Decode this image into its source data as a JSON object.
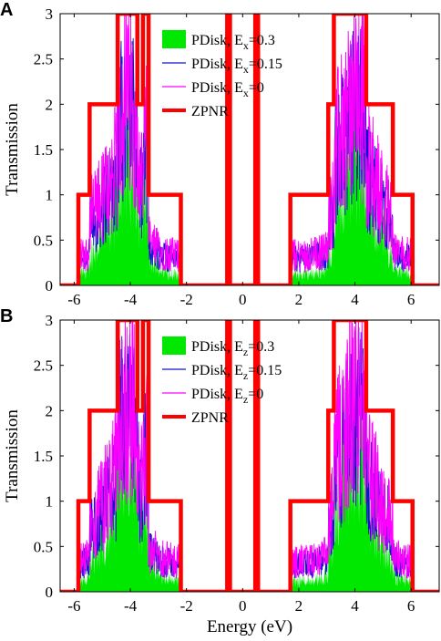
{
  "chart_data": [
    {
      "type": "line",
      "panel_label": "A",
      "xlabel": "",
      "ylabel": "Transmission",
      "xlim": [
        -6.5,
        7.0
      ],
      "ylim": [
        0,
        3
      ],
      "xticks": [
        "-6",
        "-4",
        "-2",
        "0",
        "2",
        "4",
        "6"
      ],
      "yticks": [
        "0",
        "0.5",
        "1",
        "1.5",
        "2",
        "2.5",
        "3"
      ],
      "legend_position": "top-center",
      "series": [
        {
          "name": "PDisk, E",
          "sub": "x",
          "suffix": "=0.3",
          "kind": "area",
          "color": "#00e800"
        },
        {
          "name": "PDisk, E",
          "sub": "x",
          "suffix": "=0.15",
          "kind": "line",
          "color": "#1010d0"
        },
        {
          "name": "PDisk, E",
          "sub": "x",
          "suffix": "=0",
          "kind": "line",
          "color": "#ff00ff"
        },
        {
          "name": "ZPNR",
          "sub": "",
          "suffix": "",
          "kind": "step",
          "color": "#ff0000",
          "steps_x": [
            -6.5,
            -5.85,
            -5.85,
            -5.45,
            -5.45,
            -4.45,
            -4.45,
            -3.75,
            -3.75,
            -3.55,
            -3.55,
            -3.35,
            -3.35,
            -2.2,
            -2.2,
            -0.55,
            -0.55,
            -0.45,
            -0.45,
            0.45,
            0.45,
            0.55,
            0.55,
            1.7,
            1.7,
            3.05,
            3.05,
            3.25,
            3.25,
            3.7,
            3.7,
            4.4,
            4.4,
            5.35,
            5.35,
            6.05,
            6.05,
            6.65,
            6.65,
            7.0
          ],
          "steps_y": [
            0,
            0,
            1,
            1,
            2,
            2,
            3,
            3,
            2,
            2,
            3,
            3,
            1,
            1,
            0,
            0,
            3,
            3,
            0,
            0,
            3,
            3,
            0,
            0,
            1,
            1,
            2,
            2,
            3,
            3,
            3,
            3,
            2,
            2,
            1,
            1,
            0,
            0,
            0,
            0
          ]
        }
      ]
    },
    {
      "type": "line",
      "panel_label": "B",
      "xlabel": "Energy (eV)",
      "ylabel": "Transmission",
      "xlim": [
        -6.5,
        7.0
      ],
      "ylim": [
        0,
        3
      ],
      "xticks": [
        "-6",
        "-4",
        "-2",
        "0",
        "2",
        "4",
        "6"
      ],
      "yticks": [
        "0",
        "0.5",
        "1",
        "1.5",
        "2",
        "2.5",
        "3"
      ],
      "legend_position": "top-center",
      "series": [
        {
          "name": "PDisk, E",
          "sub": "z",
          "suffix": "=0.3",
          "kind": "area",
          "color": "#00e800"
        },
        {
          "name": "PDisk, E",
          "sub": "z",
          "suffix": "=0.15",
          "kind": "line",
          "color": "#1010d0"
        },
        {
          "name": "PDisk, E",
          "sub": "z",
          "suffix": "=0",
          "kind": "line",
          "color": "#ff00ff"
        },
        {
          "name": "ZPNR",
          "sub": "",
          "suffix": "",
          "kind": "step",
          "color": "#ff0000",
          "steps_x": [
            -6.5,
            -5.85,
            -5.85,
            -5.45,
            -5.45,
            -4.45,
            -4.45,
            -3.75,
            -3.75,
            -3.55,
            -3.55,
            -3.35,
            -3.35,
            -2.2,
            -2.2,
            -0.55,
            -0.55,
            -0.45,
            -0.45,
            0.45,
            0.45,
            0.55,
            0.55,
            1.7,
            1.7,
            3.05,
            3.05,
            3.25,
            3.25,
            3.7,
            3.7,
            4.4,
            4.4,
            5.35,
            5.35,
            6.05,
            6.05,
            6.65,
            6.65,
            7.0
          ],
          "steps_y": [
            0,
            0,
            1,
            1,
            2,
            2,
            3,
            3,
            2,
            2,
            3,
            3,
            1,
            1,
            0,
            0,
            3,
            3,
            0,
            0,
            3,
            3,
            0,
            0,
            1,
            1,
            2,
            2,
            3,
            3,
            3,
            3,
            2,
            2,
            1,
            1,
            0,
            0,
            0,
            0
          ]
        }
      ]
    }
  ]
}
